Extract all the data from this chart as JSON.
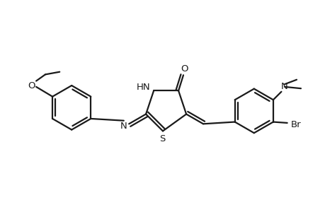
{
  "bg_color": "#ffffff",
  "line_color": "#1a1a1a",
  "lw": 1.6,
  "fs": 9.5,
  "xlim": [
    0,
    10
  ],
  "ylim": [
    0,
    6.5
  ]
}
